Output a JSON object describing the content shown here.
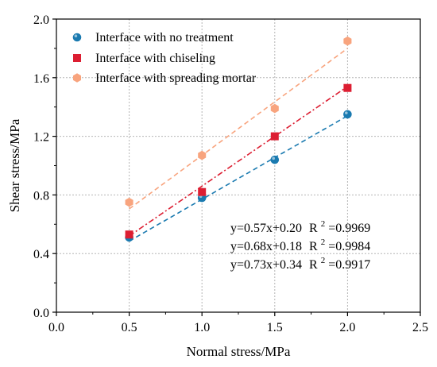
{
  "chart_data": {
    "type": "scatter",
    "xlabel": "Normal stress/MPa",
    "ylabel": "Shear stress/MPa",
    "xlim": [
      0.0,
      2.5
    ],
    "ylim": [
      0.0,
      2.0
    ],
    "xticks": [
      "0.0",
      "0.5",
      "1.0",
      "1.5",
      "2.0",
      "2.5"
    ],
    "yticks": [
      "0.0",
      "0.4",
      "0.8",
      "1.2",
      "1.6",
      "2.0"
    ],
    "grid": true,
    "legend_position": "top-left",
    "series": [
      {
        "name": "Interface with no treatment",
        "marker": "circle",
        "color": "#1a7ab0",
        "line_style": "dashed",
        "x": [
          0.5,
          1.0,
          1.5,
          2.0
        ],
        "y": [
          0.51,
          0.78,
          1.04,
          1.35
        ],
        "fit": {
          "slope": 0.57,
          "intercept": 0.2,
          "x_range": [
            0.5,
            2.0
          ]
        }
      },
      {
        "name": "Interface with chiseling",
        "marker": "square",
        "color": "#dc1e32",
        "line_style": "dash-dot",
        "x": [
          0.5,
          1.0,
          1.5,
          2.0
        ],
        "y": [
          0.53,
          0.82,
          1.2,
          1.53
        ],
        "fit": {
          "slope": 0.68,
          "intercept": 0.18,
          "x_range": [
            0.5,
            2.0
          ]
        }
      },
      {
        "name": "Interface with spreading mortar",
        "marker": "hexagon",
        "color": "#f8a47e",
        "line_style": "dashed",
        "x": [
          0.5,
          1.0,
          1.5,
          2.0
        ],
        "y": [
          0.75,
          1.07,
          1.39,
          1.85
        ],
        "fit": {
          "slope": 0.73,
          "intercept": 0.34,
          "x_range": [
            0.5,
            2.0
          ]
        }
      }
    ],
    "annotations": [
      {
        "eq": "y=0.57x+0.20",
        "r2_label": "R",
        "r2_sup": "2",
        "r2_value": "=0.9969"
      },
      {
        "eq": "y=0.68x+0.18",
        "r2_label": "R",
        "r2_sup": "2",
        "r2_value": "=0.9984"
      },
      {
        "eq": "y=0.73x+0.34",
        "r2_label": "R",
        "r2_sup": "2",
        "r2_value": "=0.9917"
      }
    ]
  }
}
